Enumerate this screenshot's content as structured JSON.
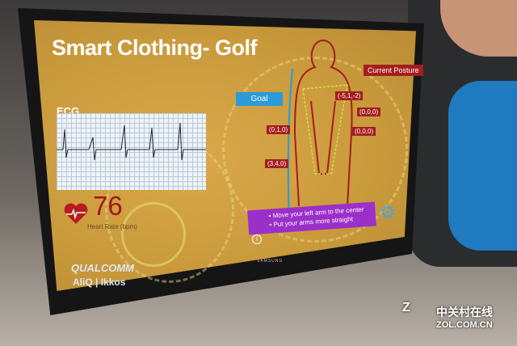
{
  "screen": {
    "title": "Smart Clothing- Golf",
    "ecg": {
      "label": "ECG"
    },
    "heart_rate": {
      "value": "76",
      "label": "Heart Rate (bpm)",
      "icon": "heart-ecg-icon",
      "color": "#a01818"
    },
    "posture": {
      "goal_label": "Goal",
      "current_label": "Current Posture",
      "joints": [
        "(-5,1,-2)",
        "(0,0,0)",
        "(0,1,0)",
        "(0,0,0)",
        "(3,4,0)"
      ],
      "goal_color": "#2a9ad8",
      "current_color": "#a51e1e"
    },
    "instructions": [
      "• Move your left arm to the center",
      "• Put your arms more straight"
    ],
    "info_icon": "i",
    "brands": {
      "line1": "QUALCOMM",
      "line2": "AliQ | Ikkos"
    }
  },
  "monitor_brand": "SAMSUNG",
  "watermark": {
    "logo": "Z",
    "cn": "中关村在线",
    "url": "ZOL.COM.CN"
  }
}
